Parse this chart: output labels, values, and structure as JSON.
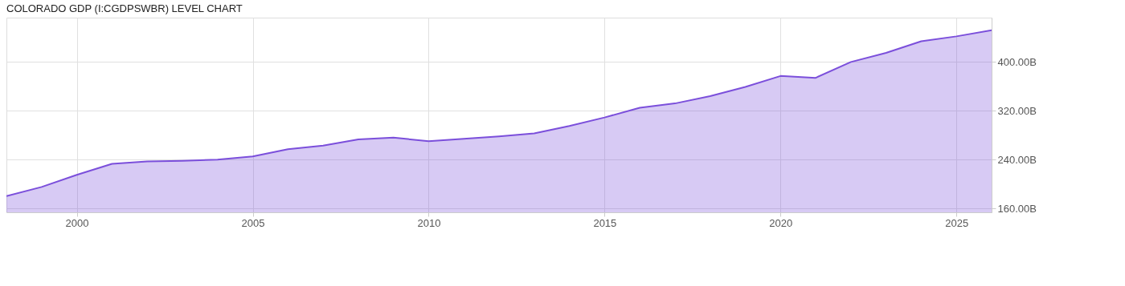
{
  "chart_data": {
    "type": "area",
    "title": "COLORADO GDP (I:CGDPSWBR) LEVEL CHART",
    "x": [
      1998,
      1999,
      2000,
      2001,
      2002,
      2003,
      2004,
      2005,
      2006,
      2007,
      2008,
      2009,
      2010,
      2011,
      2012,
      2013,
      2014,
      2015,
      2016,
      2017,
      2018,
      2019,
      2020,
      2021,
      2022,
      2023,
      2024,
      2025,
      2026
    ],
    "series": [
      {
        "color": "#7b4fdb",
        "values": [
          180,
          195,
          215,
          233,
          237,
          238,
          240,
          245,
          257,
          263,
          273,
          276,
          270,
          274,
          278,
          283,
          295,
          309,
          325,
          332,
          344,
          359,
          377,
          374,
          400,
          415,
          434,
          442,
          452
        ]
      }
    ],
    "xlim": [
      1998,
      2026
    ],
    "xticks": [
      2000,
      2005,
      2010,
      2015,
      2020,
      2025
    ],
    "ylim": [
      153.5,
      472.7
    ],
    "yticks": [
      {
        "value": 160,
        "label": "160.00B"
      },
      {
        "value": 240,
        "label": "240.00B"
      },
      {
        "value": 320,
        "label": "320.00B"
      },
      {
        "value": 400,
        "label": "400.00B"
      }
    ],
    "grid": true
  }
}
